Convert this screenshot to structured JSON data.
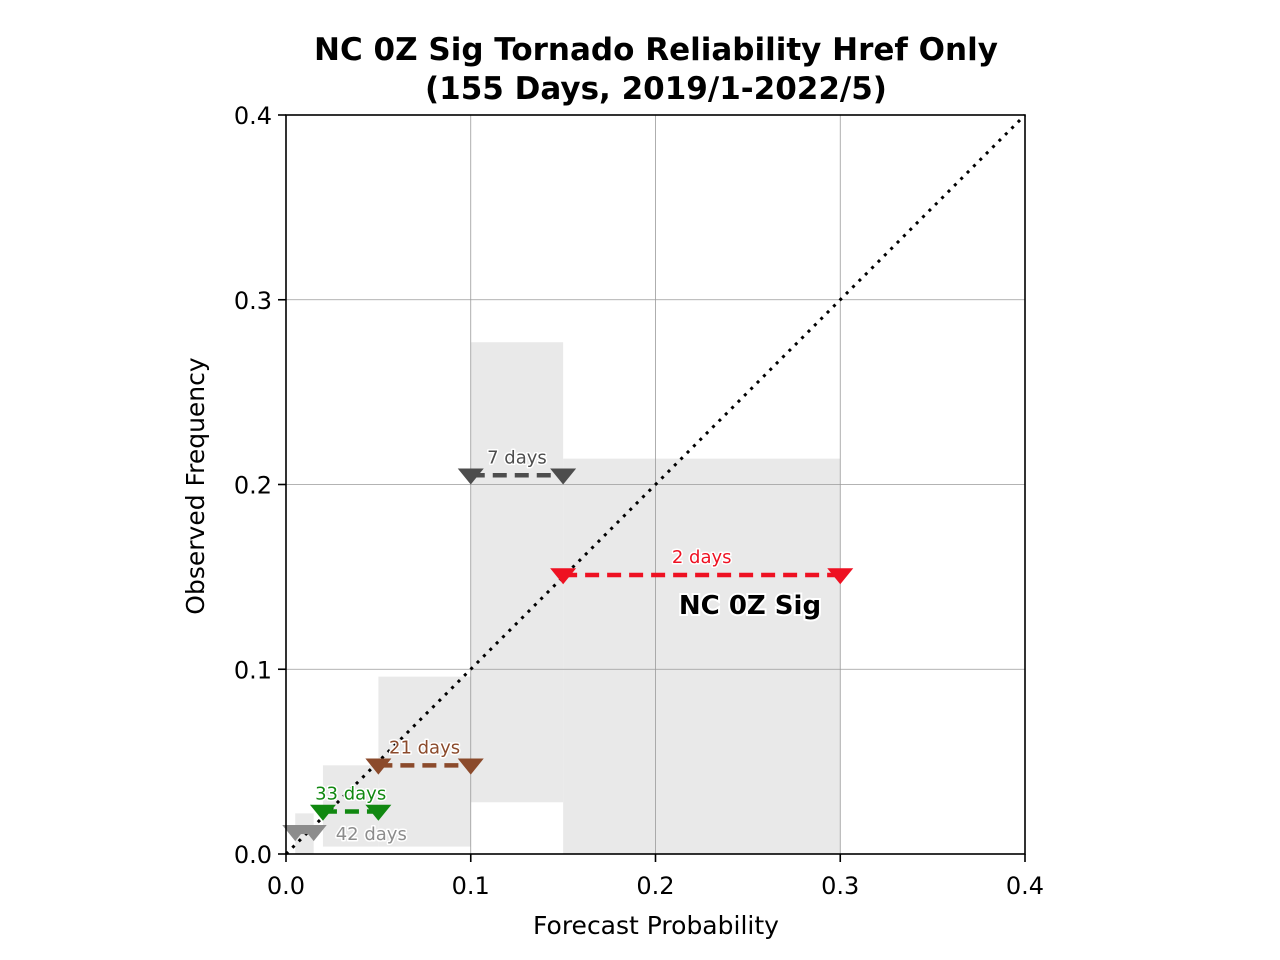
{
  "chart_data": {
    "type": "reliability",
    "title_lines": [
      "NC 0Z Sig Tornado Reliability Href Only",
      "(155 Days, 2019/1-2022/5)"
    ],
    "xlabel": "Forecast Probability",
    "ylabel": "Observed Frequency",
    "xlim": [
      0.0,
      0.4
    ],
    "ylim": [
      0.0,
      0.4
    ],
    "xticks": [
      0.0,
      0.1,
      0.2,
      0.3,
      0.4
    ],
    "yticks": [
      0.0,
      0.1,
      0.2,
      0.3,
      0.4
    ],
    "xtick_labels": [
      "0.0",
      "0.1",
      "0.2",
      "0.3",
      "0.4"
    ],
    "ytick_labels": [
      "0.0",
      "0.1",
      "0.2",
      "0.3",
      "0.4"
    ],
    "grid": true,
    "perfect_reliability_line": true,
    "series_label": "NC 0Z Sig",
    "bins": [
      {
        "x_lo": 0.005,
        "x_hi": 0.015,
        "observed": 0.012,
        "days_label": "42 days",
        "color": "#8c8c8c",
        "band_lo": 0.0,
        "band_hi": 0.022
      },
      {
        "x_lo": 0.02,
        "x_hi": 0.05,
        "observed": 0.023,
        "days_label": "33 days",
        "color": "#118811",
        "band_lo": 0.004,
        "band_hi": 0.048
      },
      {
        "x_lo": 0.05,
        "x_hi": 0.1,
        "observed": 0.048,
        "days_label": "21 days",
        "color": "#8b4a2b",
        "band_lo": 0.004,
        "band_hi": 0.096
      },
      {
        "x_lo": 0.1,
        "x_hi": 0.15,
        "observed": 0.205,
        "days_label": "7 days",
        "color": "#4d4d4d",
        "band_lo": 0.028,
        "band_hi": 0.277
      },
      {
        "x_lo": 0.15,
        "x_hi": 0.3,
        "observed": 0.151,
        "days_label": "2 days",
        "color": "#ee1122",
        "band_lo": 0.0,
        "band_hi": 0.214
      }
    ]
  }
}
